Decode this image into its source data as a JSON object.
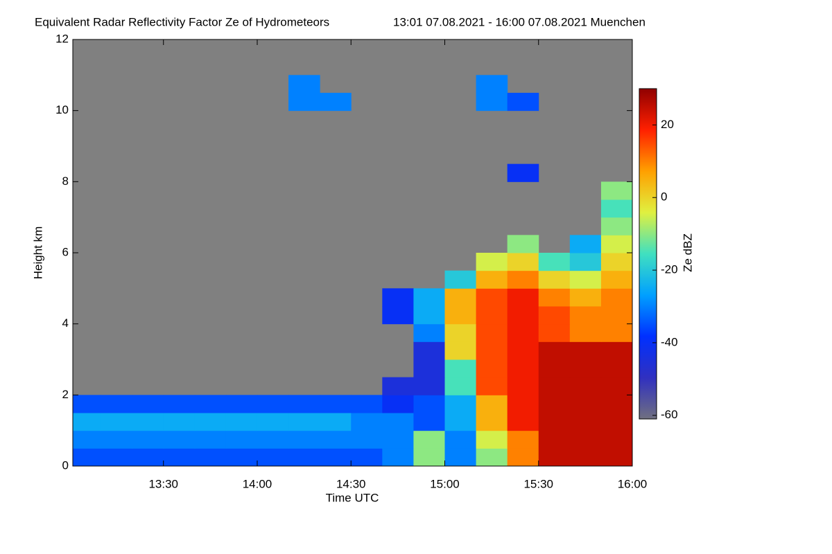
{
  "chart_data": {
    "type": "heatmap",
    "title": "Equivalent Radar Reflectivity Factor Ze of Hydrometeors",
    "subtitle": "13:01 07.08.2021 - 16:00 07.08.2021 Muenchen",
    "x_label": "Time UTC",
    "y_label": "Height km",
    "colorbar_label": "Ze dBZ",
    "xlim": [
      781,
      960
    ],
    "xticks": [
      {
        "value": 810,
        "label": "13:30"
      },
      {
        "value": 840,
        "label": "14:00"
      },
      {
        "value": 870,
        "label": "14:30"
      },
      {
        "value": 900,
        "label": "15:00"
      },
      {
        "value": 930,
        "label": "15:30"
      },
      {
        "value": 960,
        "label": "16:00"
      }
    ],
    "ylim": [
      0,
      12
    ],
    "yticks": [
      0,
      2,
      4,
      6,
      8,
      10,
      12
    ],
    "clim": [
      -61,
      30
    ],
    "cticks": [
      20,
      0,
      -20,
      -40,
      -60
    ],
    "colormap": [
      "#707080",
      "#3030c0",
      "#0030ff",
      "#00a0ff",
      "#40e0c0",
      "#e0f040",
      "#ffa000",
      "#ff2000",
      "#900000"
    ],
    "background": "#808080",
    "x_bins": [
      780,
      790,
      800,
      810,
      820,
      830,
      840,
      850,
      860,
      870,
      880,
      890,
      900,
      910,
      920,
      930,
      940,
      950,
      960
    ],
    "y_bins": [
      0,
      0.5,
      1,
      1.5,
      2,
      2.5,
      3,
      3.5,
      4,
      4.5,
      5,
      5.5,
      6,
      6.5,
      7,
      7.5,
      8,
      8.5,
      9,
      9.5,
      10,
      10.5,
      11,
      11.5,
      12
    ],
    "z": [
      [
        -35,
        -35,
        -35,
        -35,
        -35,
        -35,
        -35,
        -35,
        -35,
        -35,
        -30,
        -10,
        -30,
        -10,
        10,
        25,
        25,
        25
      ],
      [
        -30,
        -30,
        -30,
        -30,
        -30,
        -30,
        -30,
        -30,
        -30,
        -30,
        -30,
        -10,
        -30,
        -5,
        10,
        25,
        25,
        25
      ],
      [
        -25,
        -25,
        -25,
        -25,
        -25,
        -25,
        -25,
        -25,
        -25,
        -30,
        -30,
        -35,
        -25,
        5,
        20,
        25,
        25,
        25
      ],
      [
        -35,
        -35,
        -35,
        -35,
        -35,
        -35,
        -35,
        -35,
        -35,
        -35,
        -40,
        -35,
        -25,
        5,
        20,
        25,
        25,
        25
      ],
      [
        null,
        null,
        null,
        null,
        null,
        null,
        null,
        null,
        null,
        null,
        -45,
        -45,
        -15,
        15,
        20,
        25,
        25,
        25
      ],
      [
        null,
        null,
        null,
        null,
        null,
        null,
        null,
        null,
        null,
        null,
        null,
        -45,
        -15,
        15,
        20,
        25,
        25,
        25
      ],
      [
        null,
        null,
        null,
        null,
        null,
        null,
        null,
        null,
        null,
        null,
        null,
        -45,
        0,
        15,
        20,
        25,
        25,
        25
      ],
      [
        null,
        null,
        null,
        null,
        null,
        null,
        null,
        null,
        null,
        null,
        null,
        -30,
        0,
        15,
        20,
        15,
        10,
        10
      ],
      [
        null,
        null,
        null,
        null,
        null,
        null,
        null,
        null,
        null,
        null,
        -40,
        -25,
        5,
        15,
        20,
        15,
        10,
        10
      ],
      [
        null,
        null,
        null,
        null,
        null,
        null,
        null,
        null,
        null,
        null,
        -40,
        -25,
        5,
        15,
        20,
        10,
        5,
        10
      ],
      [
        null,
        null,
        null,
        null,
        null,
        null,
        null,
        null,
        null,
        null,
        null,
        null,
        -20,
        5,
        10,
        0,
        -5,
        5
      ],
      [
        null,
        null,
        null,
        null,
        null,
        null,
        null,
        null,
        null,
        null,
        null,
        null,
        null,
        -5,
        0,
        -15,
        -20,
        0
      ],
      [
        null,
        null,
        null,
        null,
        null,
        null,
        null,
        null,
        null,
        null,
        null,
        null,
        null,
        null,
        -10,
        null,
        -25,
        -5
      ],
      [
        null,
        null,
        null,
        null,
        null,
        null,
        null,
        null,
        null,
        null,
        null,
        null,
        null,
        null,
        null,
        null,
        null,
        -10
      ],
      [
        null,
        null,
        null,
        null,
        null,
        null,
        null,
        null,
        null,
        null,
        null,
        null,
        null,
        null,
        null,
        null,
        null,
        -15
      ],
      [
        null,
        null,
        null,
        null,
        null,
        null,
        null,
        null,
        null,
        null,
        null,
        null,
        null,
        null,
        null,
        null,
        null,
        -10
      ],
      [
        null,
        null,
        null,
        null,
        null,
        null,
        null,
        null,
        null,
        null,
        null,
        null,
        null,
        null,
        -40,
        null,
        null,
        null
      ],
      [
        null,
        null,
        null,
        null,
        null,
        null,
        null,
        null,
        null,
        null,
        null,
        null,
        null,
        null,
        null,
        null,
        null,
        null
      ],
      [
        null,
        null,
        null,
        null,
        null,
        null,
        null,
        null,
        null,
        null,
        null,
        null,
        null,
        null,
        null,
        null,
        null,
        null
      ],
      [
        null,
        null,
        null,
        null,
        null,
        null,
        null,
        null,
        null,
        null,
        null,
        null,
        null,
        null,
        null,
        null,
        null,
        null
      ],
      [
        null,
        null,
        null,
        null,
        null,
        null,
        null,
        -30,
        -30,
        null,
        null,
        null,
        null,
        -30,
        -35,
        null,
        null,
        null
      ],
      [
        null,
        null,
        null,
        null,
        null,
        null,
        null,
        -30,
        null,
        null,
        null,
        null,
        null,
        -30,
        null,
        null,
        null,
        null
      ],
      [
        null,
        null,
        null,
        null,
        null,
        null,
        null,
        null,
        null,
        null,
        null,
        null,
        null,
        null,
        null,
        null,
        null,
        null
      ],
      [
        null,
        null,
        null,
        null,
        null,
        null,
        null,
        null,
        null,
        null,
        null,
        null,
        null,
        null,
        null,
        null,
        null,
        null
      ]
    ]
  }
}
